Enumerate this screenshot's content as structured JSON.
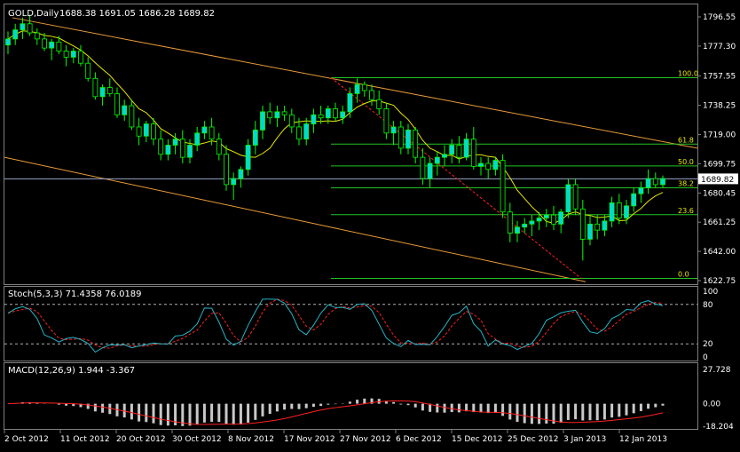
{
  "colors": {
    "background": "#000000",
    "frame": "#808080",
    "text": "#ffffff",
    "bull_candle": "#00d8d8",
    "bear_candle": "#000000",
    "wick": "#00ff00",
    "ma": "#e8e800",
    "channel": "#e89a3a",
    "fibo": "#22c322",
    "fibo_text": "#e8e800",
    "stoch_main": "#27b6c8",
    "stoch_signal": "#ff2020",
    "macd_hist": "#c8c8c8",
    "macd_signal": "#ff2020",
    "price_marker_bg": "#ffffff",
    "price_marker_text": "#000000"
  },
  "main_panel": {
    "title": "GOLD,Daily",
    "ohlc": "1688.38 1691.05 1686.28 1689.82",
    "price_labels": [
      "1796.55",
      "1777.30",
      "1757.55",
      "1738.25",
      "1719.00",
      "1699.75",
      "1680.45",
      "1661.25",
      "1642.00",
      "1622.75"
    ],
    "current_price": "1689.82",
    "fibo_labels": [
      "100.0",
      "61.8",
      "50.0",
      "38.2",
      "23.6",
      "0.0"
    ]
  },
  "stoch_panel": {
    "title": "Stoch(5,3,3) 71.4358 76.0189",
    "scale_labels": [
      "100",
      "80",
      "20",
      "0"
    ]
  },
  "macd_panel": {
    "title": "MACD(12,26,9) 1.944 -3.367",
    "scale_labels": [
      "27.728",
      "0.00",
      "-18.204"
    ]
  },
  "x_axis": {
    "labels": [
      "2 Oct 2012",
      "11 Oct 2012",
      "20 Oct 2012",
      "30 Oct 2012",
      "8 Nov 2012",
      "17 Nov 2012",
      "27 Nov 2012",
      "6 Dec 2012",
      "15 Dec 2012",
      "25 Dec 2012",
      "3 Jan 2013",
      "12 Jan 2013"
    ]
  },
  "chart_data": {
    "type": "candlestick",
    "symbol": "GOLD",
    "timeframe": "Daily",
    "ylim": [
      1622.75,
      1796.55
    ],
    "candles": [
      [
        1778,
        1787,
        1772,
        1782
      ],
      [
        1782,
        1792,
        1778,
        1788
      ],
      [
        1788,
        1796,
        1782,
        1792
      ],
      [
        1792,
        1798,
        1784,
        1786
      ],
      [
        1786,
        1789,
        1778,
        1782
      ],
      [
        1782,
        1786,
        1774,
        1776
      ],
      [
        1776,
        1782,
        1768,
        1780
      ],
      [
        1780,
        1784,
        1772,
        1774
      ],
      [
        1774,
        1778,
        1764,
        1770
      ],
      [
        1770,
        1776,
        1766,
        1774
      ],
      [
        1774,
        1778,
        1764,
        1766
      ],
      [
        1766,
        1770,
        1754,
        1756
      ],
      [
        1756,
        1760,
        1742,
        1744
      ],
      [
        1744,
        1752,
        1738,
        1750
      ],
      [
        1750,
        1756,
        1744,
        1746
      ],
      [
        1746,
        1750,
        1730,
        1732
      ],
      [
        1732,
        1742,
        1728,
        1738
      ],
      [
        1738,
        1742,
        1722,
        1724
      ],
      [
        1724,
        1730,
        1712,
        1718
      ],
      [
        1718,
        1728,
        1714,
        1726
      ],
      [
        1726,
        1730,
        1712,
        1716
      ],
      [
        1716,
        1722,
        1702,
        1706
      ],
      [
        1706,
        1716,
        1702,
        1712
      ],
      [
        1712,
        1720,
        1706,
        1716
      ],
      [
        1716,
        1722,
        1700,
        1704
      ],
      [
        1704,
        1716,
        1700,
        1712
      ],
      [
        1712,
        1724,
        1708,
        1720
      ],
      [
        1720,
        1728,
        1716,
        1724
      ],
      [
        1724,
        1730,
        1712,
        1716
      ],
      [
        1716,
        1720,
        1702,
        1706
      ],
      [
        1706,
        1712,
        1682,
        1686
      ],
      [
        1686,
        1694,
        1676,
        1690
      ],
      [
        1690,
        1698,
        1684,
        1696
      ],
      [
        1696,
        1716,
        1692,
        1712
      ],
      [
        1712,
        1728,
        1706,
        1722
      ],
      [
        1722,
        1738,
        1716,
        1734
      ],
      [
        1734,
        1740,
        1726,
        1730
      ],
      [
        1730,
        1738,
        1724,
        1734
      ],
      [
        1734,
        1738,
        1728,
        1732
      ],
      [
        1732,
        1736,
        1720,
        1724
      ],
      [
        1724,
        1730,
        1712,
        1716
      ],
      [
        1716,
        1730,
        1712,
        1726
      ],
      [
        1726,
        1736,
        1720,
        1732
      ],
      [
        1732,
        1738,
        1726,
        1730
      ],
      [
        1730,
        1738,
        1726,
        1736
      ],
      [
        1736,
        1740,
        1728,
        1730
      ],
      [
        1730,
        1738,
        1726,
        1734
      ],
      [
        1734,
        1750,
        1730,
        1746
      ],
      [
        1746,
        1756,
        1740,
        1752
      ],
      [
        1752,
        1754,
        1744,
        1748
      ],
      [
        1748,
        1752,
        1738,
        1742
      ],
      [
        1742,
        1748,
        1732,
        1736
      ],
      [
        1736,
        1740,
        1716,
        1720
      ],
      [
        1720,
        1728,
        1712,
        1724
      ],
      [
        1724,
        1728,
        1706,
        1710
      ],
      [
        1710,
        1726,
        1706,
        1722
      ],
      [
        1722,
        1724,
        1700,
        1704
      ],
      [
        1704,
        1710,
        1686,
        1690
      ],
      [
        1690,
        1704,
        1684,
        1700
      ],
      [
        1700,
        1708,
        1692,
        1704
      ],
      [
        1704,
        1712,
        1698,
        1706
      ],
      [
        1706,
        1716,
        1700,
        1712
      ],
      [
        1712,
        1718,
        1700,
        1704
      ],
      [
        1704,
        1720,
        1702,
        1716
      ],
      [
        1716,
        1724,
        1696,
        1698
      ],
      [
        1698,
        1704,
        1692,
        1700
      ],
      [
        1700,
        1704,
        1690,
        1696
      ],
      [
        1696,
        1704,
        1692,
        1702
      ],
      [
        1702,
        1706,
        1664,
        1668
      ],
      [
        1668,
        1674,
        1648,
        1654
      ],
      [
        1654,
        1662,
        1648,
        1658
      ],
      [
        1658,
        1664,
        1654,
        1660
      ],
      [
        1660,
        1666,
        1652,
        1662
      ],
      [
        1662,
        1668,
        1656,
        1664
      ],
      [
        1664,
        1670,
        1658,
        1666
      ],
      [
        1666,
        1672,
        1656,
        1660
      ],
      [
        1660,
        1670,
        1654,
        1668
      ],
      [
        1668,
        1690,
        1664,
        1686
      ],
      [
        1686,
        1690,
        1666,
        1670
      ],
      [
        1670,
        1676,
        1636,
        1650
      ],
      [
        1650,
        1666,
        1646,
        1660
      ],
      [
        1660,
        1666,
        1650,
        1656
      ],
      [
        1656,
        1666,
        1652,
        1662
      ],
      [
        1662,
        1678,
        1658,
        1674
      ],
      [
        1674,
        1680,
        1660,
        1664
      ],
      [
        1664,
        1676,
        1660,
        1672
      ],
      [
        1672,
        1684,
        1668,
        1680
      ],
      [
        1680,
        1688,
        1674,
        1684
      ],
      [
        1684,
        1696,
        1680,
        1690
      ],
      [
        1690,
        1694,
        1684,
        1686
      ],
      [
        1686,
        1692,
        1684,
        1690
      ]
    ]
  }
}
